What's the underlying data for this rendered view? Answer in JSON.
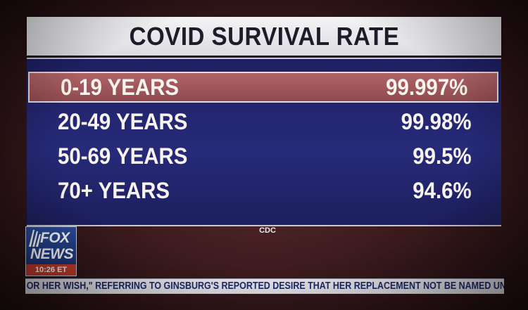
{
  "graphic": {
    "title": "COVID SURVIVAL RATE",
    "rows": [
      {
        "label": "0-19 YEARS",
        "value": "99.997%",
        "highlighted": true
      },
      {
        "label": "20-49 YEARS",
        "value": "99.98%",
        "highlighted": false
      },
      {
        "label": "50-69 YEARS",
        "value": "99.5%",
        "highlighted": false
      },
      {
        "label": "70+ YEARS",
        "value": "94.6%",
        "highlighted": false
      }
    ],
    "source": "CDC"
  },
  "logo": {
    "line1": "FOX",
    "line2": "NEWS",
    "time": "10:26 ET",
    "icon": "fox-news-logo"
  },
  "ticker": {
    "text": "OR HER WISH,\" REFERRING TO GINSBURG'S REPORTED DESIRE THAT HER REPLACEMENT NOT BE NAMED UN"
  },
  "colors": {
    "panel": "#22246b",
    "highlight": "#a05a5e",
    "title_bg": "#ececf0",
    "logo_red": "#c43b2c"
  }
}
